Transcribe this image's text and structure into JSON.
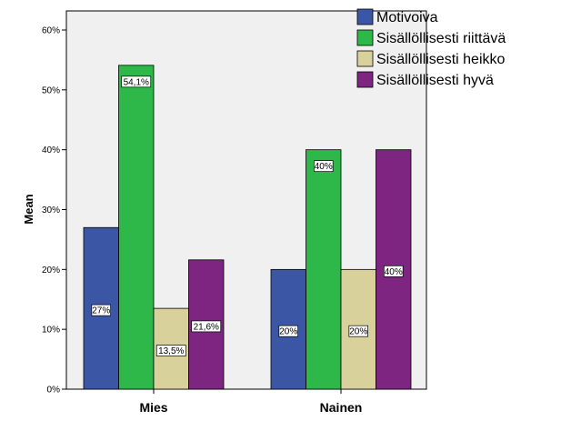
{
  "chart_data": {
    "type": "bar",
    "ylabel": "Mean",
    "xlabel": "",
    "ylim": [
      0,
      60
    ],
    "yticks": [
      0,
      10,
      20,
      30,
      40,
      50,
      60
    ],
    "ytick_labels": [
      "0%",
      "10%",
      "20%",
      "30%",
      "40%",
      "50%",
      "60%"
    ],
    "categories": [
      "Mies",
      "Nainen"
    ],
    "grid": false,
    "legend_position": "top-right",
    "series": [
      {
        "name": "Motivoiva",
        "color": "#3c56a6",
        "values": [
          27,
          20
        ],
        "labels": [
          "27%",
          "20%"
        ]
      },
      {
        "name": "Sisällöllisesti riittävä",
        "color": "#2fb84a",
        "values": [
          54.1,
          40
        ],
        "labels": [
          "54,1%",
          "40%"
        ]
      },
      {
        "name": "Sisällöllisesti heikko",
        "color": "#d9d19c",
        "values": [
          13.5,
          20
        ],
        "labels": [
          "13,5%",
          "20%"
        ]
      },
      {
        "name": "Sisällöllisesti hyvä",
        "color": "#7d2580",
        "values": [
          21.6,
          40
        ],
        "labels": [
          "21,6%",
          "40%"
        ]
      }
    ]
  }
}
